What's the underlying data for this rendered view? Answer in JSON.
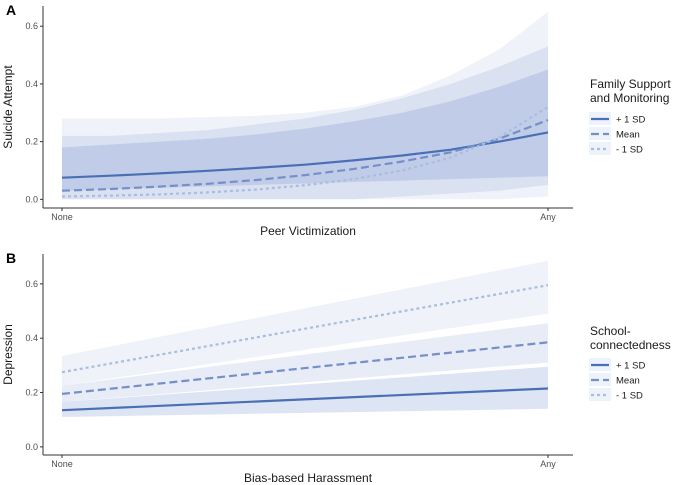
{
  "chart_data": [
    {
      "type": "line",
      "panel": "A",
      "xlabel": "Peer Victimization",
      "ylabel": "Suicide Attempt",
      "categories": [
        "None",
        "Any"
      ],
      "ylim": [
        -0.03,
        0.67
      ],
      "yticks": [
        "0.0",
        "0.2",
        "0.4",
        "0.6"
      ],
      "legend": {
        "title_lines": [
          "Family Support",
          "and Monitoring"
        ],
        "position": "right"
      },
      "series": [
        {
          "name": "+ 1 SD",
          "style": "solid",
          "color": "#4a6fb5",
          "x": [
            0,
            0.1,
            0.2,
            0.3,
            0.4,
            0.5,
            0.6,
            0.7,
            0.8,
            0.9,
            1
          ],
          "values": [
            0.075,
            0.082,
            0.09,
            0.099,
            0.109,
            0.12,
            0.135,
            0.152,
            0.172,
            0.2,
            0.232
          ],
          "lower": [
            0.03,
            0.035,
            0.04,
            0.045,
            0.05,
            0.055,
            0.06,
            0.065,
            0.07,
            0.075,
            0.08
          ],
          "upper": [
            0.18,
            0.19,
            0.2,
            0.21,
            0.225,
            0.245,
            0.27,
            0.3,
            0.34,
            0.39,
            0.45
          ]
        },
        {
          "name": "Mean",
          "style": "longdash",
          "color": "#7590c8",
          "x": [
            0,
            0.1,
            0.2,
            0.3,
            0.4,
            0.5,
            0.6,
            0.7,
            0.8,
            0.9,
            1
          ],
          "values": [
            0.03,
            0.036,
            0.044,
            0.054,
            0.067,
            0.084,
            0.105,
            0.131,
            0.163,
            0.21,
            0.275
          ],
          "lower": [
            0.0,
            0.0,
            0.0,
            0.0,
            0.0,
            0.0,
            0.0,
            0.01,
            0.02,
            0.03,
            0.05
          ],
          "upper": [
            0.22,
            0.22,
            0.23,
            0.24,
            0.26,
            0.28,
            0.31,
            0.35,
            0.4,
            0.46,
            0.53
          ]
        },
        {
          "name": "- 1 SD",
          "style": "dotted",
          "color": "#a9bde0",
          "x": [
            0,
            0.1,
            0.2,
            0.3,
            0.4,
            0.5,
            0.6,
            0.7,
            0.8,
            0.9,
            1
          ],
          "values": [
            0.01,
            0.013,
            0.017,
            0.024,
            0.034,
            0.049,
            0.07,
            0.1,
            0.145,
            0.215,
            0.32
          ],
          "lower": [
            0.0,
            0.0,
            0.0,
            0.0,
            0.0,
            0.0,
            0.0,
            0.0,
            0.0,
            0.0,
            0.01
          ],
          "upper": [
            0.28,
            0.28,
            0.28,
            0.285,
            0.29,
            0.3,
            0.32,
            0.36,
            0.43,
            0.52,
            0.65
          ]
        }
      ]
    },
    {
      "type": "line",
      "panel": "B",
      "xlabel": "Bias-based Harassment",
      "ylabel": "Depression",
      "categories": [
        "None",
        "Any"
      ],
      "ylim": [
        -0.03,
        0.71
      ],
      "yticks": [
        "0.0",
        "0.2",
        "0.4",
        "0.6"
      ],
      "legend": {
        "title_lines": [
          "School-",
          "connectedness"
        ],
        "position": "right"
      },
      "series": [
        {
          "name": "+ 1 SD",
          "style": "solid",
          "color": "#4a6fb5",
          "x": [
            0,
            1
          ],
          "values": [
            0.135,
            0.215
          ],
          "lower": [
            0.11,
            0.14
          ],
          "upper": [
            0.165,
            0.295
          ]
        },
        {
          "name": "Mean",
          "style": "longdash",
          "color": "#7590c8",
          "x": [
            0,
            1
          ],
          "values": [
            0.195,
            0.385
          ],
          "lower": [
            0.165,
            0.31
          ],
          "upper": [
            0.225,
            0.455
          ]
        },
        {
          "name": "- 1 SD",
          "style": "dotted",
          "color": "#a9bde0",
          "x": [
            0,
            1
          ],
          "values": [
            0.275,
            0.595
          ],
          "lower": [
            0.225,
            0.49
          ],
          "upper": [
            0.335,
            0.685
          ]
        }
      ]
    }
  ]
}
